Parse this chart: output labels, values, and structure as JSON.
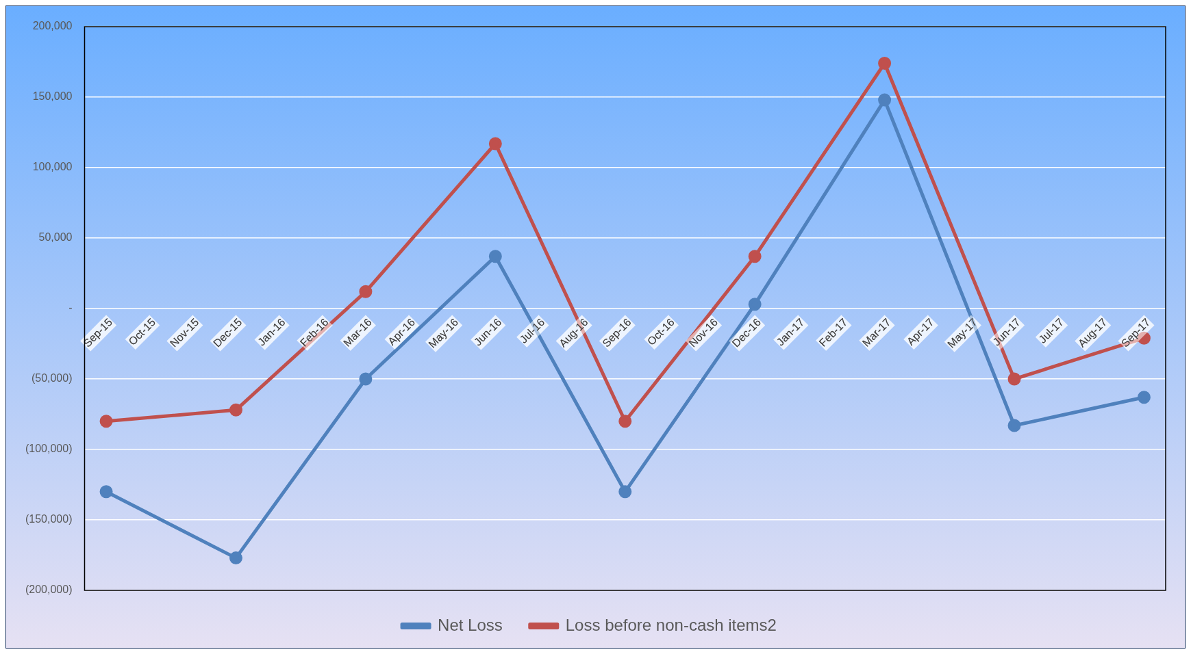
{
  "chart_data": {
    "type": "line",
    "categories": [
      "Sep-15",
      "Oct-15",
      "Nov-15",
      "Dec-15",
      "Jan-16",
      "Feb-16",
      "Mar-16",
      "Apr-16",
      "May-16",
      "Jun-16",
      "Jul-16",
      "Aug-16",
      "Sep-16",
      "Oct-16",
      "Nov-16",
      "Dec-16",
      "Jan-17",
      "Feb-17",
      "Mar-17",
      "Apr-17",
      "May-17",
      "Jun-17",
      "Jul-17",
      "Aug-17",
      "Sep-17"
    ],
    "series": [
      {
        "name": "Net Loss",
        "color": "#4f81bd",
        "values": [
          -130000,
          null,
          null,
          -177000,
          null,
          null,
          -50000,
          null,
          null,
          37000,
          null,
          null,
          -130000,
          null,
          null,
          3000,
          null,
          null,
          148000,
          null,
          null,
          -83000,
          null,
          null,
          -63000
        ]
      },
      {
        "name": "Loss before non-cash items2",
        "color": "#c0504d",
        "values": [
          -80000,
          null,
          null,
          -72000,
          null,
          null,
          12000,
          null,
          null,
          117000,
          null,
          null,
          -80000,
          null,
          null,
          37000,
          null,
          null,
          174000,
          null,
          null,
          -50000,
          null,
          null,
          -21000
        ]
      }
    ],
    "ylim": [
      -200000,
      200000
    ],
    "yticks": [
      {
        "value": -200000,
        "label": "(200,000)"
      },
      {
        "value": -150000,
        "label": "(150,000)"
      },
      {
        "value": -100000,
        "label": "(100,000)"
      },
      {
        "value": -50000,
        "label": "(50,000)"
      },
      {
        "value": 0,
        "label": "-"
      },
      {
        "value": 50000,
        "label": "50,000"
      },
      {
        "value": 100000,
        "label": "100,000"
      },
      {
        "value": 150000,
        "label": "150,000"
      },
      {
        "value": 200000,
        "label": "200,000"
      }
    ],
    "grid": "y",
    "legend": "bottom",
    "marker": "circle",
    "line_style": "solid"
  }
}
